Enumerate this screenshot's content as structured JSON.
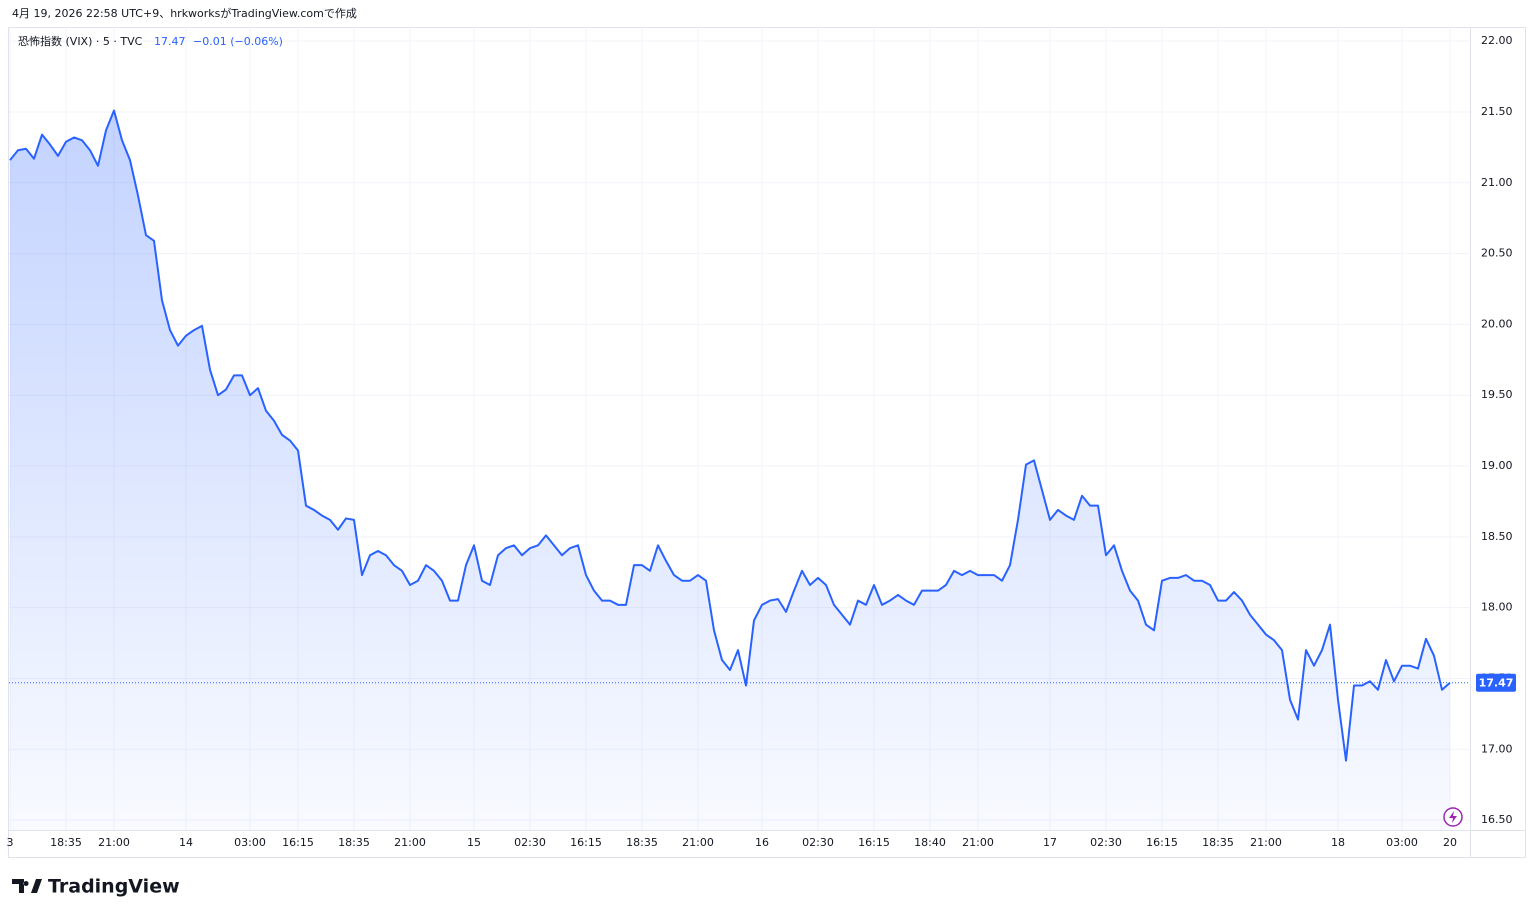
{
  "header": {
    "caption": "4月 19, 2026 22:58 UTC+9、hrkworksがTradingView.comで作成"
  },
  "chart_data": {
    "type": "area",
    "title": "恐怖指数 (VIX) · 5 · TVC",
    "last_value": 17.47,
    "change": "−0.01 (−0.06%)",
    "color": "#2962ff",
    "grid": true,
    "ylim": [
      16.43,
      22.1
    ],
    "yticks": [
      {
        "value": 16.5,
        "label": "16.50"
      },
      {
        "value": 17,
        "label": "17.00"
      },
      {
        "value": 17.5,
        "label": "17.50"
      },
      {
        "value": 18,
        "label": "18.00"
      },
      {
        "value": 18.5,
        "label": "18.50"
      },
      {
        "value": 19,
        "label": "19.00"
      },
      {
        "value": 19.5,
        "label": "19.50"
      },
      {
        "value": 20,
        "label": "20.00"
      },
      {
        "value": 20.5,
        "label": "20.50"
      },
      {
        "value": 21,
        "label": "21.00"
      },
      {
        "value": 21.5,
        "label": "21.50"
      },
      {
        "value": 22,
        "label": "22.00"
      }
    ],
    "categories": [
      "3",
      null,
      null,
      null,
      null,
      null,
      null,
      "18:35",
      null,
      null,
      null,
      null,
      null,
      "21:00",
      null,
      null,
      null,
      null,
      null,
      null,
      null,
      null,
      "14",
      null,
      null,
      null,
      null,
      null,
      null,
      null,
      "03:00",
      null,
      null,
      null,
      null,
      null,
      "16:15",
      null,
      null,
      null,
      null,
      null,
      null,
      "18:35",
      null,
      null,
      null,
      null,
      null,
      null,
      "21:00",
      null,
      null,
      null,
      null,
      null,
      null,
      null,
      "15",
      null,
      null,
      null,
      null,
      null,
      null,
      "02:30",
      null,
      null,
      null,
      null,
      null,
      null,
      "16:15",
      null,
      null,
      null,
      null,
      null,
      null,
      "18:35",
      null,
      null,
      null,
      null,
      null,
      null,
      "21:00",
      null,
      null,
      null,
      null,
      null,
      null,
      null,
      "16",
      null,
      null,
      null,
      null,
      null,
      null,
      "02:30",
      null,
      null,
      null,
      null,
      null,
      null,
      "16:15",
      null,
      null,
      null,
      null,
      null,
      null,
      "18:40",
      null,
      null,
      null,
      null,
      null,
      "21:00",
      null,
      null,
      null,
      null,
      null,
      null,
      null,
      null,
      "17",
      null,
      null,
      null,
      null,
      null,
      null,
      "02:30",
      null,
      null,
      null,
      null,
      null,
      null,
      "16:15",
      null,
      null,
      null,
      null,
      null,
      null,
      "18:35",
      null,
      null,
      null,
      null,
      null,
      "21:00",
      null,
      null,
      null,
      null,
      null,
      null,
      null,
      null,
      "18",
      null,
      null,
      null,
      null,
      null,
      null,
      null,
      "03:00",
      null,
      null,
      null,
      null,
      null,
      "20"
    ],
    "values": [
      21.16,
      21.23,
      21.24,
      21.17,
      21.34,
      21.27,
      21.19,
      21.29,
      21.32,
      21.3,
      21.23,
      21.12,
      21.37,
      21.51,
      21.3,
      21.16,
      20.91,
      20.63,
      20.59,
      20.17,
      19.96,
      19.85,
      19.92,
      19.96,
      19.99,
      19.68,
      19.5,
      19.54,
      19.64,
      19.64,
      19.5,
      19.55,
      19.39,
      19.32,
      19.22,
      19.18,
      19.11,
      18.72,
      18.69,
      18.65,
      18.62,
      18.55,
      18.63,
      18.62,
      18.23,
      18.37,
      18.4,
      18.37,
      18.3,
      18.26,
      18.16,
      18.19,
      18.3,
      18.26,
      18.19,
      18.05,
      18.05,
      18.3,
      18.44,
      18.19,
      18.16,
      18.37,
      18.42,
      18.44,
      18.37,
      18.42,
      18.44,
      18.51,
      18.44,
      18.37,
      18.42,
      18.44,
      18.23,
      18.12,
      18.05,
      18.05,
      18.02,
      18.02,
      18.3,
      18.3,
      18.26,
      18.44,
      18.33,
      18.23,
      18.19,
      18.19,
      18.23,
      18.19,
      17.84,
      17.63,
      17.56,
      17.7,
      17.45,
      17.91,
      18.02,
      18.05,
      18.06,
      17.97,
      18.12,
      18.26,
      18.16,
      18.21,
      18.16,
      18.02,
      17.95,
      17.88,
      18.05,
      18.02,
      18.16,
      18.02,
      18.05,
      18.09,
      18.05,
      18.02,
      18.12,
      18.12,
      18.12,
      18.16,
      18.26,
      18.23,
      18.26,
      18.23,
      18.23,
      18.23,
      18.19,
      18.3,
      18.62,
      19.01,
      19.04,
      18.83,
      18.62,
      18.69,
      18.65,
      18.62,
      18.79,
      18.72,
      18.72,
      18.37,
      18.44,
      18.26,
      18.12,
      18.05,
      17.88,
      17.84,
      18.19,
      18.21,
      18.21,
      18.23,
      18.19,
      18.19,
      18.16,
      18.05,
      18.05,
      18.11,
      18.05,
      17.95,
      17.88,
      17.81,
      17.77,
      17.7,
      17.35,
      17.21,
      17.7,
      17.59,
      17.7,
      17.88,
      17.35,
      16.92,
      17.45,
      17.45,
      17.48,
      17.42,
      17.63,
      17.48,
      17.59,
      17.59,
      17.57,
      17.78,
      17.66,
      17.42,
      17.47
    ]
  },
  "footer": {
    "logo": "TradingView"
  }
}
